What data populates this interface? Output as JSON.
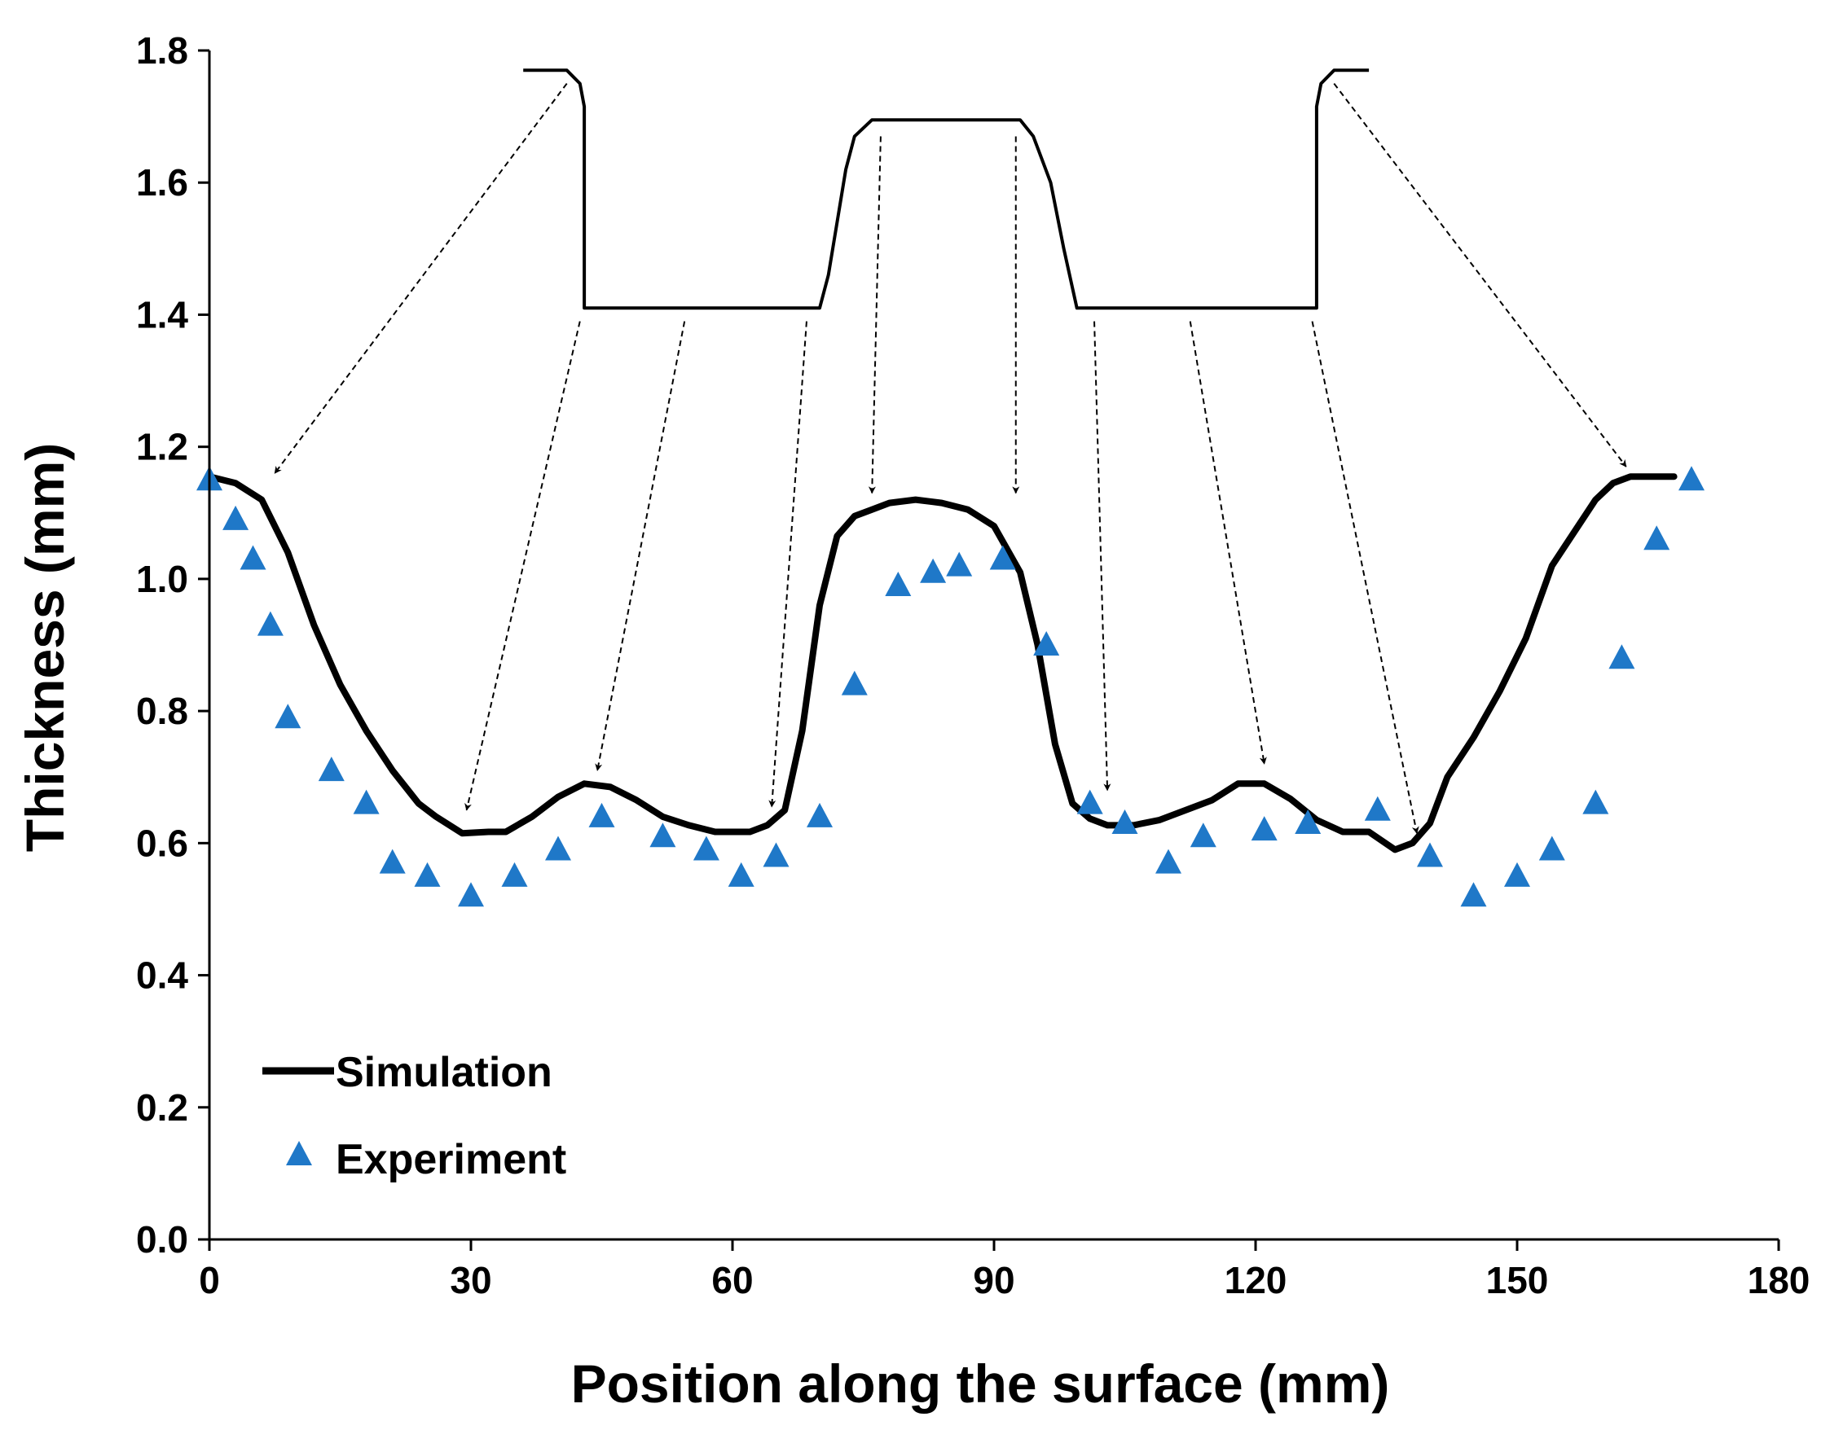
{
  "chart_data": {
    "type": "scatter",
    "title": "",
    "xlabel": "Position along the surface (mm)",
    "ylabel": "Thickness (mm)",
    "xlim": [
      0,
      180
    ],
    "ylim": [
      0,
      1.8
    ],
    "xticks": [
      0,
      30,
      60,
      90,
      120,
      150,
      180
    ],
    "yticks": [
      0.0,
      0.2,
      0.4,
      0.6,
      0.8,
      1.0,
      1.2,
      1.4,
      1.6,
      1.8
    ],
    "xtick_labels": [
      "0",
      "30",
      "60",
      "90",
      "120",
      "150",
      "180"
    ],
    "ytick_labels": [
      "0.0",
      "0.2",
      "0.4",
      "0.6",
      "0.8",
      "1.0",
      "1.2",
      "1.4",
      "1.6",
      "1.8"
    ],
    "grid": false,
    "legend_position": "bottom-left",
    "colors": {
      "simulation": "#000000",
      "experiment": "#1f78c8",
      "profile": "#000000",
      "arrow": "#000000"
    },
    "series": [
      {
        "name": "Simulation",
        "kind": "line",
        "x": [
          0,
          3,
          6,
          9,
          12,
          15,
          18,
          21,
          24,
          26,
          29,
          32,
          34,
          37,
          40,
          43,
          46,
          49,
          52,
          55,
          58,
          62,
          64,
          66,
          68,
          70,
          72,
          74,
          76,
          78,
          81,
          84,
          87,
          90,
          93,
          95,
          97,
          99,
          101,
          103,
          106,
          109,
          112,
          115,
          118,
          121,
          124,
          127,
          130,
          133,
          136,
          138,
          140,
          142,
          145,
          148,
          151,
          154,
          157,
          159,
          161,
          163,
          166,
          168
        ],
        "values": [
          1.155,
          1.145,
          1.12,
          1.04,
          0.93,
          0.84,
          0.77,
          0.71,
          0.66,
          0.64,
          0.615,
          0.617,
          0.617,
          0.64,
          0.67,
          0.69,
          0.685,
          0.665,
          0.64,
          0.627,
          0.617,
          0.617,
          0.627,
          0.65,
          0.77,
          0.96,
          1.065,
          1.095,
          1.105,
          1.115,
          1.12,
          1.115,
          1.105,
          1.08,
          1.01,
          0.9,
          0.75,
          0.66,
          0.637,
          0.627,
          0.627,
          0.635,
          0.65,
          0.665,
          0.69,
          0.69,
          0.667,
          0.635,
          0.617,
          0.617,
          0.59,
          0.6,
          0.63,
          0.7,
          0.76,
          0.83,
          0.91,
          1.02,
          1.08,
          1.12,
          1.145,
          1.155,
          1.155,
          1.155
        ]
      },
      {
        "name": "Experiment",
        "kind": "scatter",
        "marker": "triangle",
        "x": [
          0,
          3,
          5,
          7,
          9,
          14,
          18,
          21,
          25,
          30,
          35,
          40,
          45,
          52,
          57,
          61,
          65,
          70,
          74,
          79,
          83,
          86,
          91,
          96,
          101,
          105,
          110,
          114,
          121,
          126,
          134,
          140,
          145,
          150,
          154,
          159,
          162,
          166,
          170
        ],
        "values": [
          1.15,
          1.09,
          1.03,
          0.93,
          0.79,
          0.71,
          0.66,
          0.57,
          0.55,
          0.52,
          0.55,
          0.59,
          0.64,
          0.61,
          0.59,
          0.55,
          0.58,
          0.64,
          0.84,
          0.99,
          1.01,
          1.02,
          1.03,
          0.9,
          0.66,
          0.63,
          0.57,
          0.61,
          0.62,
          0.63,
          0.65,
          0.58,
          0.52,
          0.55,
          0.59,
          0.66,
          0.88,
          1.06,
          1.15
        ]
      }
    ],
    "annotations": {
      "profile_outline": {
        "description": "Schematic cross-section of the formed part drawn above the curves",
        "x": [
          36,
          41,
          42.5,
          43,
          43,
          70,
          71,
          73,
          74,
          76,
          93,
          94.5,
          96.5,
          98,
          99.5,
          127,
          127,
          127.5,
          129,
          133
        ],
        "values": [
          1.77,
          1.77,
          1.75,
          1.715,
          1.41,
          1.41,
          1.46,
          1.62,
          1.67,
          1.695,
          1.695,
          1.67,
          1.6,
          1.5,
          1.41,
          1.41,
          1.715,
          1.75,
          1.77,
          1.77
        ]
      },
      "arrows": [
        {
          "from": [
            41,
            1.75
          ],
          "to": [
            7.5,
            1.16
          ]
        },
        {
          "from": [
            42.5,
            1.39
          ],
          "to": [
            29.5,
            0.65
          ]
        },
        {
          "from": [
            54.5,
            1.39
          ],
          "to": [
            44.5,
            0.71
          ]
        },
        {
          "from": [
            68.5,
            1.39
          ],
          "to": [
            64.5,
            0.655
          ]
        },
        {
          "from": [
            77,
            1.67
          ],
          "to": [
            76,
            1.13
          ]
        },
        {
          "from": [
            92.5,
            1.67
          ],
          "to": [
            92.5,
            1.13
          ]
        },
        {
          "from": [
            101.5,
            1.39
          ],
          "to": [
            103,
            0.68
          ]
        },
        {
          "from": [
            112.5,
            1.39
          ],
          "to": [
            121,
            0.72
          ]
        },
        {
          "from": [
            126.5,
            1.39
          ],
          "to": [
            138.5,
            0.615
          ]
        },
        {
          "from": [
            129,
            1.75
          ],
          "to": [
            162.5,
            1.17
          ]
        }
      ]
    }
  }
}
